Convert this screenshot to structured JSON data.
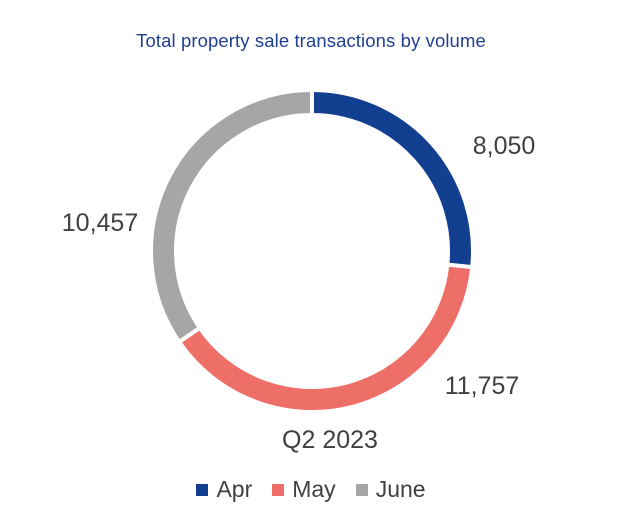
{
  "chart_data": {
    "type": "pie",
    "title": "Total property sale transactions by volume",
    "center_label": "Q2 2023",
    "categories": [
      "Apr",
      "May",
      "June"
    ],
    "values": [
      8050,
      11757,
      10457
    ],
    "value_labels": [
      "8,050",
      "11,757",
      "10,457"
    ],
    "colors": [
      "#133f91",
      "#ee6e68",
      "#a6a6a8"
    ],
    "style": "donut",
    "legend": "bottom"
  }
}
